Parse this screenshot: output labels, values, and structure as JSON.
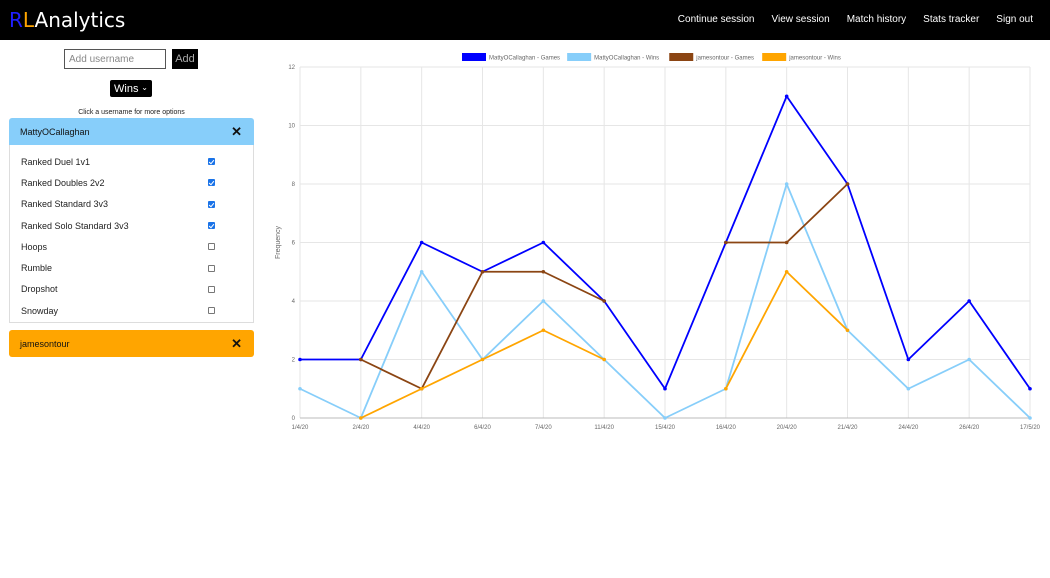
{
  "app": {
    "brand_r": "R",
    "brand_l": "L",
    "brand_rest": "Analytics"
  },
  "nav": [
    {
      "label": "Continue session",
      "name": "nav-continue-session"
    },
    {
      "label": "View session",
      "name": "nav-view-session"
    },
    {
      "label": "Match history",
      "name": "nav-match-history"
    },
    {
      "label": "Stats tracker",
      "name": "nav-stats-tracker"
    },
    {
      "label": "Sign out",
      "name": "nav-sign-out"
    }
  ],
  "add_user": {
    "placeholder": "Add username",
    "button_label": "Add"
  },
  "metric_select": {
    "value": "Wins"
  },
  "hint": "Click a username for more options",
  "users": [
    {
      "name": "MattyOCallaghan",
      "color": "#87cefa",
      "expanded": true,
      "playlists": [
        {
          "label": "Ranked Duel 1v1",
          "checked": true
        },
        {
          "label": "Ranked Doubles 2v2",
          "checked": true
        },
        {
          "label": "Ranked Standard 3v3",
          "checked": true
        },
        {
          "label": "Ranked Solo Standard 3v3",
          "checked": true
        },
        {
          "label": "Hoops",
          "checked": false
        },
        {
          "label": "Rumble",
          "checked": false
        },
        {
          "label": "Dropshot",
          "checked": false
        },
        {
          "label": "Snowday",
          "checked": false
        }
      ]
    },
    {
      "name": "jamesontour",
      "color": "#ffa500",
      "expanded": false,
      "playlists": []
    }
  ],
  "chart_data": {
    "type": "line",
    "ylabel": "Frequency",
    "ylim": [
      0,
      12
    ],
    "yticks": [
      0,
      2,
      4,
      6,
      8,
      10,
      12
    ],
    "grid": true,
    "legend": "top",
    "categories": [
      "1/4/20",
      "2/4/20",
      "4/4/20",
      "6/4/20",
      "7/4/20",
      "11/4/20",
      "15/4/20",
      "16/4/20",
      "20/4/20",
      "21/4/20",
      "24/4/20",
      "26/4/20",
      "17/5/20"
    ],
    "series": [
      {
        "name": "MattyOCallaghan - Games",
        "color": "#0000ff",
        "values": [
          2,
          2,
          6,
          5,
          6,
          4,
          1,
          6,
          11,
          8,
          2,
          4,
          1
        ]
      },
      {
        "name": "MattyOCallaghan - Wins",
        "color": "#87cefa",
        "values": [
          1,
          0,
          5,
          2,
          4,
          2,
          0,
          1,
          8,
          3,
          1,
          2,
          0
        ]
      },
      {
        "name": "jamesontour - Games",
        "color": "#8b4513",
        "values": [
          null,
          2,
          1,
          5,
          5,
          4,
          null,
          6,
          6,
          8,
          null,
          null,
          null
        ]
      },
      {
        "name": "jamesontour - Wins",
        "color": "#ffa500",
        "values": [
          null,
          0,
          1,
          2,
          3,
          2,
          null,
          1,
          5,
          3,
          null,
          null,
          null
        ]
      }
    ]
  }
}
